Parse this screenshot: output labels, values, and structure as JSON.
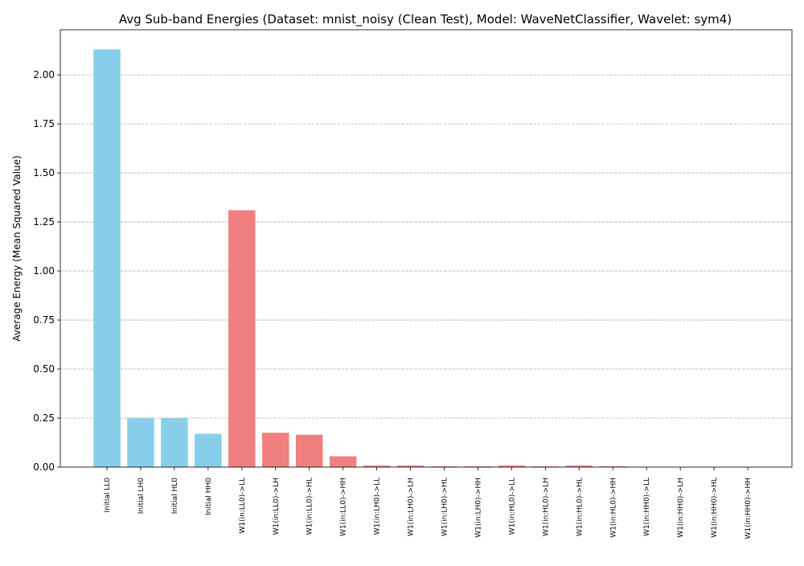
{
  "chart_data": {
    "type": "bar",
    "title": "Avg Sub-band Energies (Dataset: mnist_noisy (Clean Test), Model: WaveNetClassifier, Wavelet: sym4)",
    "xlabel": "",
    "ylabel": "Average Energy (Mean Squared Value)",
    "ylim": [
      0,
      2.23
    ],
    "yticks": [
      "0.00",
      "0.25",
      "0.50",
      "0.75",
      "1.00",
      "1.25",
      "1.50",
      "1.75",
      "2.00"
    ],
    "grid": "y-dashed",
    "categories": [
      "Initial LL0",
      "Initial LH0",
      "Initial HL0",
      "Initial HH0",
      "W1(in:LL0)->LL",
      "W1(in:LL0)->LH",
      "W1(in:LL0)->HL",
      "W1(in:LL0)->HH",
      "W1(in:LH0)->LL",
      "W1(in:LH0)->LH",
      "W1(in:LH0)->HL",
      "W1(in:LH0)->HH",
      "W1(in:HL0)->LL",
      "W1(in:HL0)->LH",
      "W1(in:HL0)->HL",
      "W1(in:HL0)->HH",
      "W1(in:HH0)->LL",
      "W1(in:HH0)->LH",
      "W1(in:HH0)->HL",
      "W1(in:HH0)->HH"
    ],
    "values": [
      2.13,
      0.25,
      0.25,
      0.17,
      1.31,
      0.175,
      0.165,
      0.055,
      0.008,
      0.008,
      0.004,
      0.004,
      0.008,
      0.004,
      0.008,
      0.004,
      0.0,
      0.0,
      0.0,
      0.0
    ],
    "colors": [
      "#87ceeb",
      "#87ceeb",
      "#87ceeb",
      "#87ceeb",
      "#f08080",
      "#f08080",
      "#f08080",
      "#f08080",
      "#f08080",
      "#f08080",
      "#f08080",
      "#f08080",
      "#f08080",
      "#f08080",
      "#f08080",
      "#f08080",
      "#f08080",
      "#f08080",
      "#f08080",
      "#f08080"
    ]
  }
}
